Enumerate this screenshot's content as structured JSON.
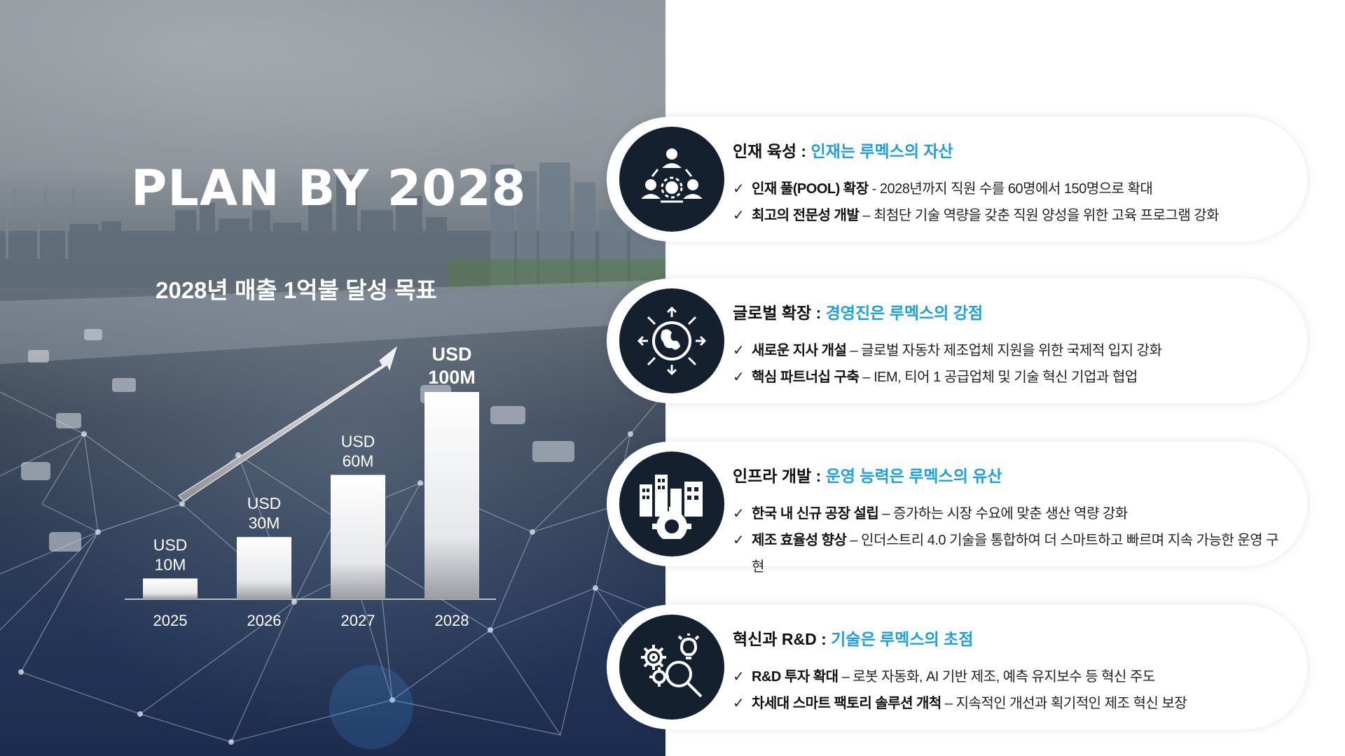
{
  "title": "PLAN BY 2028",
  "subtitle": "2028년 매출 1억불 달성 목표",
  "chart_data": {
    "type": "bar",
    "title": "2028년 매출 1억불 달성 목표",
    "categories": [
      "2025",
      "2026",
      "2027",
      "2028"
    ],
    "values": [
      10,
      30,
      60,
      100
    ],
    "data_labels": [
      [
        "USD",
        "10M"
      ],
      [
        "USD",
        "30M"
      ],
      [
        "USD",
        "60M"
      ],
      [
        "USD",
        "100M"
      ]
    ],
    "ylim": [
      0,
      100
    ],
    "grid": false
  },
  "colors": {
    "accent": "#1ea0e0",
    "icon_bg": "#14202e",
    "text": "#222222"
  },
  "cards": [
    {
      "icon": "people-network-icon",
      "title_main": "인재 육성 : ",
      "title_highlight": "인재는 루멕스의 자산",
      "bullets": [
        {
          "check": "✓",
          "bold": "인재 풀(POOL) 확장",
          "text": " - 2028년까지 직원 수를 60명에서 150명으로 확대"
        },
        {
          "check": "✓",
          "bold": "최고의 전문성 개발",
          "text": " – 최첨단 기술 역량을 갖춘 직원 양성을 위한 고육 프로그램 강화"
        }
      ]
    },
    {
      "icon": "globe-expand-icon",
      "title_main": "글로벌 확장 : ",
      "title_highlight": "경영진은 루멕스의 강점",
      "bullets": [
        {
          "check": "✓",
          "bold": "새로운 지사 개설",
          "text": " – 글로벌 자동차 제조업체 지원을 위한 국제적 입지 강화"
        },
        {
          "check": "✓",
          "bold": "핵심 파트너십 구축",
          "text": " – IEM, 티어 1 공급업체 및 기술 혁신 기업과 협업"
        }
      ]
    },
    {
      "icon": "factory-gear-icon",
      "title_main": "인프라 개발 : ",
      "title_highlight": "운영 능력은 루멕스의 유산",
      "bullets": [
        {
          "check": "✓",
          "bold": "한국 내 신규 공장 설립",
          "text": " – 증가하는 시장 수요에 맞춘 생산 역량 강화"
        },
        {
          "check": "✓",
          "bold": "제조 효율성 향상",
          "text": " – 인더스트리 4.0 기술을 통합하여 더 스마트하고 빠르며 지속 가능한 운영 구현"
        }
      ]
    },
    {
      "icon": "gears-bulb-magnifier-icon",
      "title_main": "혁신과 R&D : ",
      "title_highlight": "기술은 루멕스의 초점",
      "bullets": [
        {
          "check": "✓",
          "bold": "R&D 투자 확대",
          "text": " – 로봇 자동화, AI 기반 제조, 예측 유지보수 등 혁신 주도"
        },
        {
          "check": "✓",
          "bold": "차세대 스마트 팩토리 솔루션 개척",
          "text": " – 지속적인 개선과 획기적인 제조 혁신 보장"
        }
      ]
    }
  ]
}
